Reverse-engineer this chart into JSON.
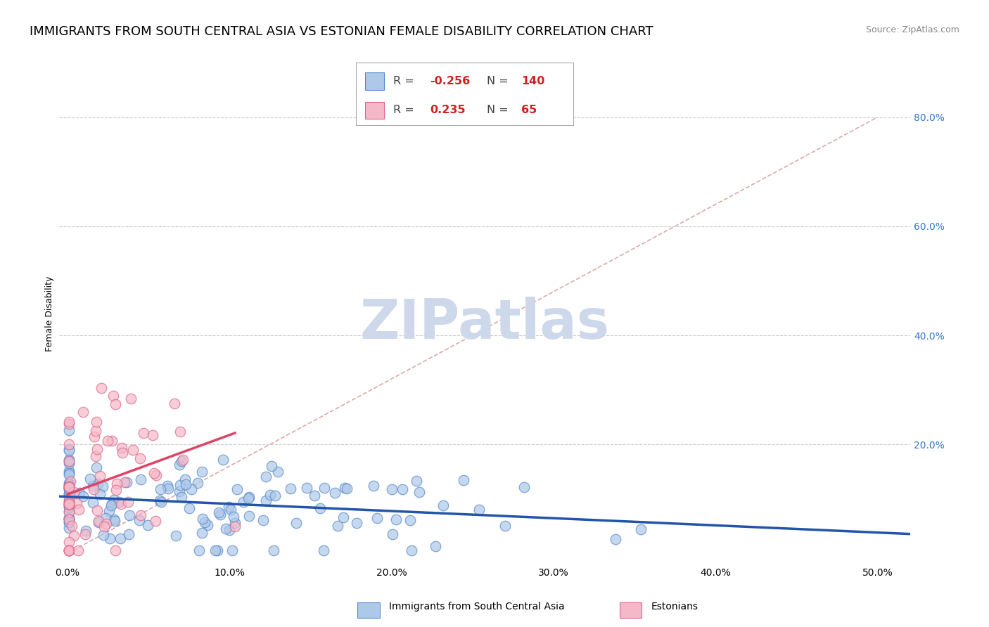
{
  "title": "IMMIGRANTS FROM SOUTH CENTRAL ASIA VS ESTONIAN FEMALE DISABILITY CORRELATION CHART",
  "source_text": "Source: ZipAtlas.com",
  "ylabel": "Female Disability",
  "x_tick_labels": [
    "0.0%",
    "10.0%",
    "20.0%",
    "30.0%",
    "40.0%",
    "50.0%"
  ],
  "x_tick_values": [
    0.0,
    10.0,
    20.0,
    30.0,
    40.0,
    50.0
  ],
  "y_tick_labels": [
    "20.0%",
    "40.0%",
    "60.0%",
    "80.0%"
  ],
  "y_tick_values": [
    20.0,
    40.0,
    60.0,
    80.0
  ],
  "xlim": [
    -0.5,
    52.0
  ],
  "ylim": [
    -2.0,
    90.0
  ],
  "series1_color": "#adc8e8",
  "series1_edge": "#5588cc",
  "series2_color": "#f5b8c8",
  "series2_edge": "#dd6688",
  "trendline1_color": "#2255aa",
  "trendline2_color": "#dd4466",
  "diagonal_color": "#ddaaaa",
  "diagonal_style": "--",
  "watermark_color": "#cdd8ea",
  "title_fontsize": 13,
  "axis_fontsize": 9,
  "tick_fontsize": 10,
  "N1": 140,
  "N2": 65,
  "R1": -0.256,
  "R2": 0.235,
  "x1_mean": 8.0,
  "x1_std": 9.0,
  "y1_mean": 10.0,
  "y1_std": 4.5,
  "x2_mean": 2.2,
  "x2_std": 2.8,
  "y2_mean": 13.0,
  "y2_std": 9.5,
  "seed1": 12,
  "seed2": 77
}
